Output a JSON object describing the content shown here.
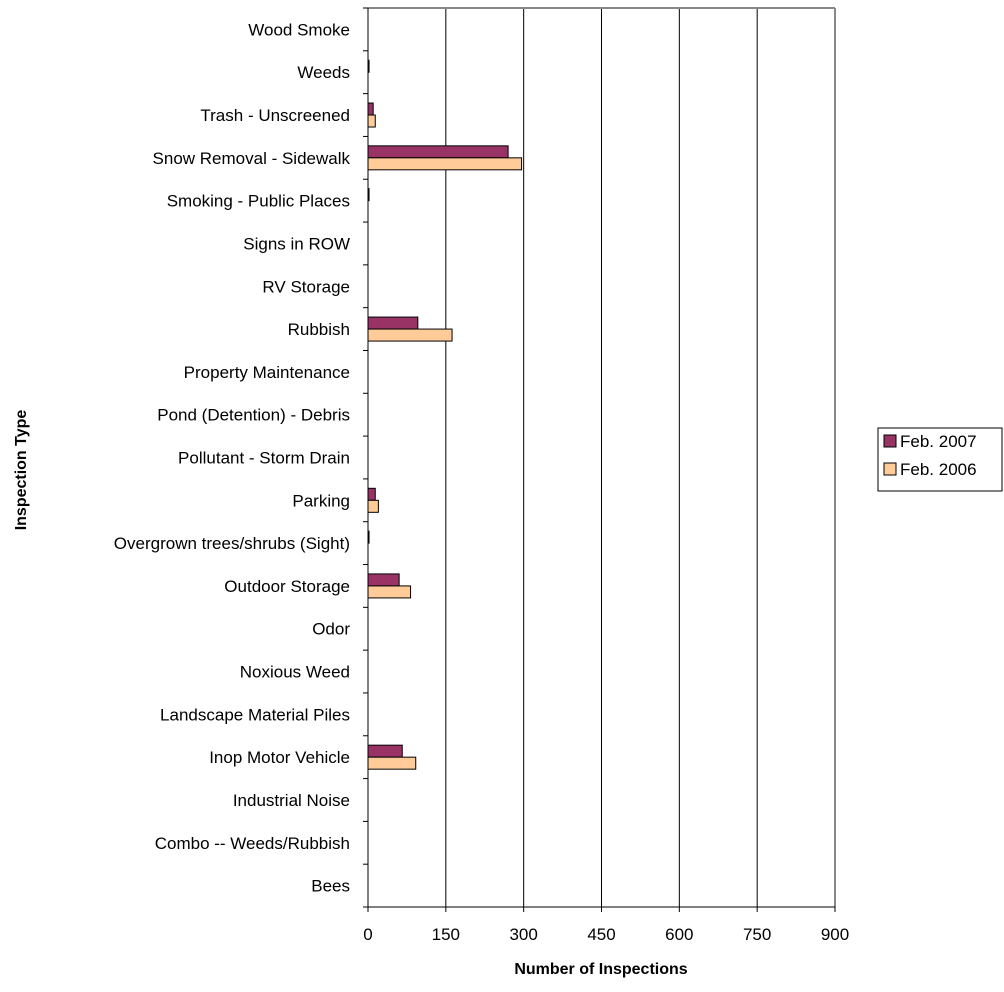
{
  "chart_data": {
    "type": "bar",
    "orientation": "horizontal",
    "categories": [
      "Wood Smoke",
      "Weeds",
      "Trash - Unscreened",
      "Snow Removal - Sidewalk",
      "Smoking - Public Places",
      "Signs in ROW",
      "RV Storage",
      "Rubbish",
      "Property Maintenance",
      "Pond (Detention) - Debris",
      "Pollutant - Storm Drain",
      "Parking",
      "Overgrown trees/shrubs (Sight)",
      "Outdoor Storage",
      "Odor",
      "Noxious Weed",
      "Landscape Material Piles",
      "Inop Motor Vehicle",
      "Industrial Noise",
      "Combo -- Weeds/Rubbish",
      "Bees"
    ],
    "series": [
      {
        "name": "Feb. 2007",
        "color": "#993366",
        "values": [
          0,
          2,
          10,
          270,
          2,
          0,
          0,
          96,
          0,
          0,
          0,
          14,
          2,
          60,
          0,
          0,
          0,
          66,
          0,
          0,
          0
        ]
      },
      {
        "name": "Feb. 2006",
        "color": "#FFCC99",
        "values": [
          0,
          0,
          14,
          296,
          0,
          0,
          0,
          162,
          0,
          0,
          0,
          20,
          0,
          82,
          0,
          0,
          0,
          92,
          0,
          0,
          0
        ]
      }
    ],
    "xlabel": "Number of Inspections",
    "ylabel": "Inspection Type",
    "xlim": [
      0,
      900
    ],
    "xticks": [
      "0",
      "150",
      "300",
      "450",
      "600",
      "750",
      "900"
    ],
    "grid": "vertical",
    "legend": "right"
  }
}
